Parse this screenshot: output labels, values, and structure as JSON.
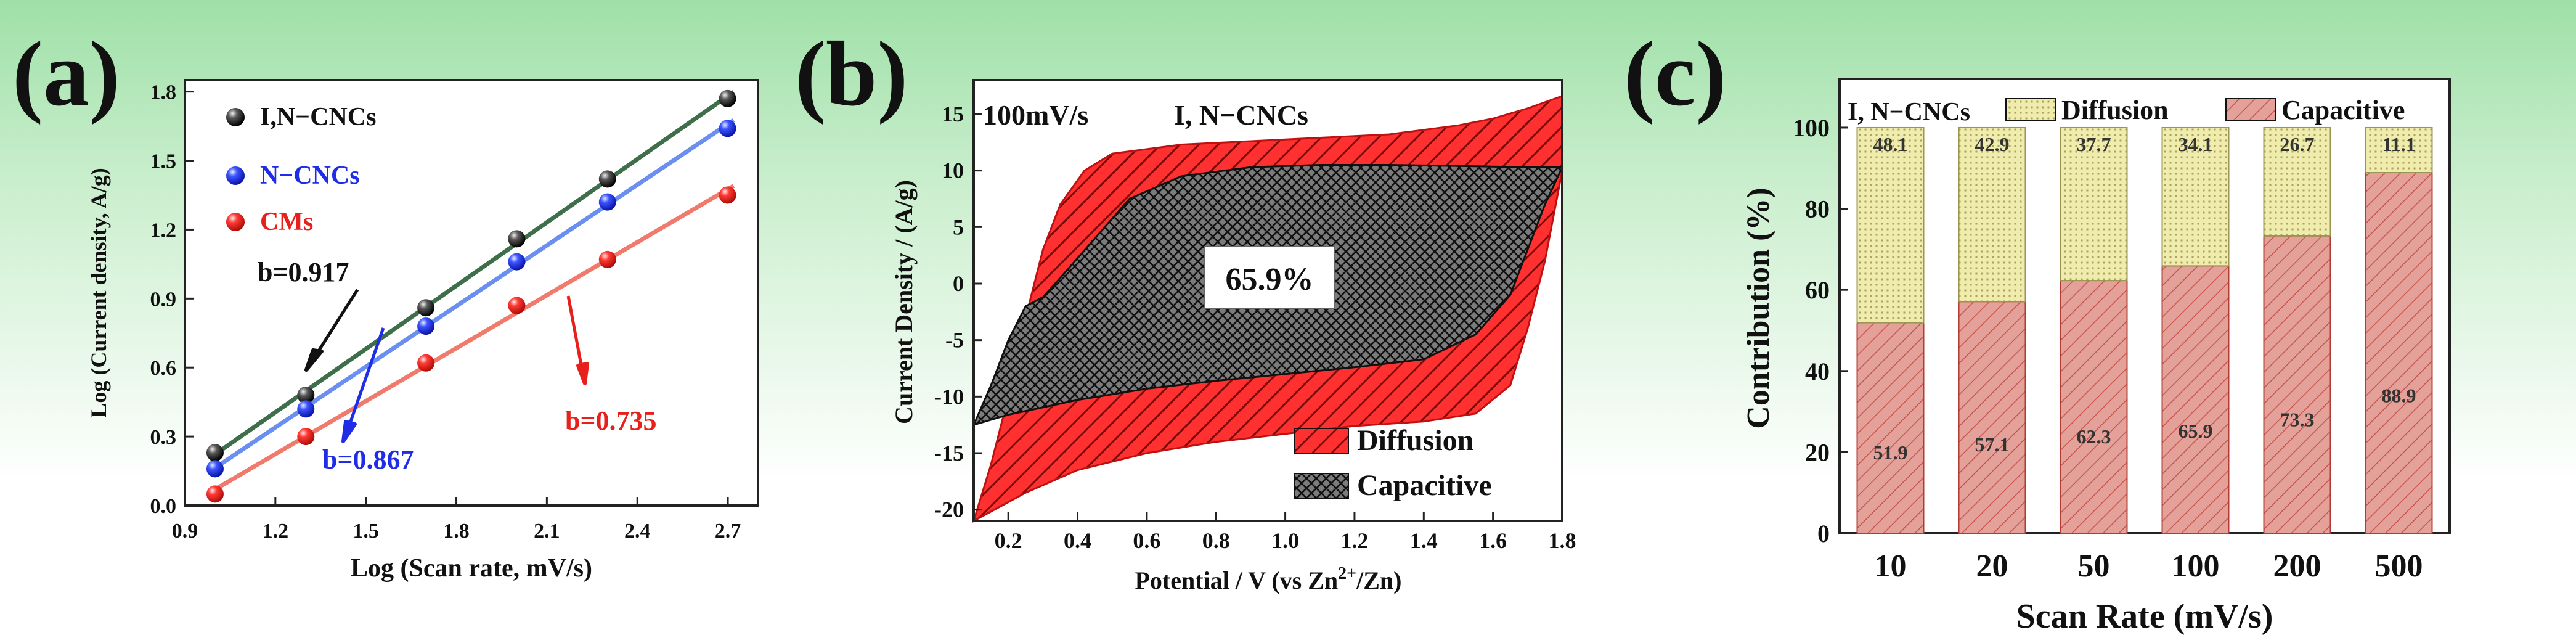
{
  "panels": [
    {
      "label": "(a)",
      "chart_data": {
        "type": "scatter",
        "xlabel": "Log (Scan rate, mV/s)",
        "ylabel": "Log (Current density, A/g)",
        "xlim": [
          0.9,
          2.8
        ],
        "ylim": [
          0.0,
          1.85
        ],
        "x_ticks": [
          "0.9",
          "1.2",
          "1.5",
          "1.8",
          "2.1",
          "2.4",
          "2.7"
        ],
        "y_ticks": [
          "0.0",
          "0.3",
          "0.6",
          "0.9",
          "1.2",
          "1.5",
          "1.8"
        ],
        "series": [
          {
            "name": "I,N−CNCs",
            "color": "#222222",
            "line_color": "#3f6e4a",
            "slope_label": "b=0.917",
            "x": [
              1.0,
              1.301,
              1.699,
              2.0,
              2.301,
              2.699
            ],
            "y": [
              0.23,
              0.48,
              0.86,
              1.16,
              1.42,
              1.77
            ]
          },
          {
            "name": "N−CNCs",
            "color": "#1f2ee6",
            "line_color": "#6b8ff0",
            "slope_label": "b=0.867",
            "x": [
              1.0,
              1.301,
              1.699,
              2.0,
              2.301,
              2.699
            ],
            "y": [
              0.16,
              0.42,
              0.78,
              1.06,
              1.32,
              1.64
            ]
          },
          {
            "name": "CMs",
            "color": "#e8201c",
            "line_color": "#f07a6c",
            "slope_label": "b=0.735",
            "x": [
              1.0,
              1.301,
              1.699,
              2.0,
              2.301,
              2.699
            ],
            "y": [
              0.05,
              0.3,
              0.62,
              0.87,
              1.07,
              1.35
            ]
          }
        ]
      }
    },
    {
      "label": "(b)",
      "chart_data": {
        "type": "area",
        "title": "100mV/s",
        "subtitle": "I, N−CNCs",
        "xlabel": "Potential / V (vs Zn",
        "xlabel_sup": "2+",
        "xlabel_tail": "/Zn)",
        "ylabel": "Current Density / (A/g)",
        "xlim": [
          0.1,
          1.8
        ],
        "ylim": [
          -21,
          18
        ],
        "x_ticks": [
          "0.2",
          "0.4",
          "0.6",
          "0.8",
          "1.0",
          "1.2",
          "1.4",
          "1.6",
          "1.8"
        ],
        "y_ticks": [
          "-20",
          "-15",
          "-10",
          "-5",
          "0",
          "5",
          "10",
          "15"
        ],
        "annotation": "65.9%",
        "legend": [
          "Diffusion",
          "Capacitive"
        ],
        "diffusion_outline": [
          [
            0.1,
            -21
          ],
          [
            0.15,
            -16
          ],
          [
            0.2,
            -10
          ],
          [
            0.25,
            -3
          ],
          [
            0.3,
            3
          ],
          [
            0.35,
            7
          ],
          [
            0.42,
            10
          ],
          [
            0.5,
            11.5
          ],
          [
            0.7,
            12.3
          ],
          [
            0.9,
            12.6
          ],
          [
            1.1,
            12.9
          ],
          [
            1.3,
            13.2
          ],
          [
            1.5,
            14
          ],
          [
            1.6,
            14.6
          ],
          [
            1.7,
            15.5
          ],
          [
            1.8,
            16.6
          ],
          [
            1.8,
            10
          ],
          [
            1.75,
            2
          ],
          [
            1.7,
            -4
          ],
          [
            1.65,
            -9
          ],
          [
            1.55,
            -11.5
          ],
          [
            1.4,
            -12.2
          ],
          [
            1.2,
            -12.6
          ],
          [
            1.0,
            -13.3
          ],
          [
            0.8,
            -14
          ],
          [
            0.6,
            -15
          ],
          [
            0.4,
            -16.5
          ],
          [
            0.25,
            -18.5
          ],
          [
            0.1,
            -21
          ]
        ],
        "capacitive_outline": [
          [
            0.1,
            -12.5
          ],
          [
            0.15,
            -9
          ],
          [
            0.2,
            -5
          ],
          [
            0.25,
            -2
          ],
          [
            0.3,
            -1.2
          ],
          [
            0.35,
            0.5
          ],
          [
            0.45,
            4
          ],
          [
            0.55,
            7.5
          ],
          [
            0.7,
            9.5
          ],
          [
            0.9,
            10.3
          ],
          [
            1.1,
            10.5
          ],
          [
            1.3,
            10.5
          ],
          [
            1.5,
            10.4
          ],
          [
            1.7,
            10.3
          ],
          [
            1.8,
            10.3
          ],
          [
            1.75,
            7
          ],
          [
            1.7,
            3
          ],
          [
            1.65,
            -1
          ],
          [
            1.55,
            -4.5
          ],
          [
            1.4,
            -6.7
          ],
          [
            1.2,
            -7.4
          ],
          [
            1.0,
            -8
          ],
          [
            0.8,
            -8.6
          ],
          [
            0.6,
            -9.3
          ],
          [
            0.4,
            -10.3
          ],
          [
            0.2,
            -11.6
          ],
          [
            0.1,
            -12.5
          ]
        ]
      }
    },
    {
      "label": "(c)",
      "chart_data": {
        "type": "bar",
        "stacked": true,
        "xlabel": "Scan Rate (mV/s)",
        "ylabel": "Contribution (%)",
        "ylim": [
          0,
          112
        ],
        "y_ticks": [
          "0",
          "20",
          "40",
          "60",
          "80",
          "100"
        ],
        "inset_label": "I, N−CNCs",
        "categories": [
          "10",
          "20",
          "50",
          "100",
          "200",
          "500"
        ],
        "series": [
          {
            "name": "Capacitive",
            "color": "#e2968f",
            "values": [
              51.9,
              57.1,
              62.3,
              65.9,
              73.3,
              88.9
            ],
            "labels": [
              "51.9",
              "57.1",
              "62.3",
              "65.9",
              "73.3",
              "88.9"
            ]
          },
          {
            "name": "Diffusion",
            "color": "#ebe8a4",
            "values": [
              48.1,
              42.9,
              37.7,
              34.1,
              26.7,
              11.1
            ],
            "labels": [
              "48.1",
              "42.9",
              "37.7",
              "34.1",
              "26.7",
              "11.1"
            ]
          }
        ]
      }
    }
  ]
}
